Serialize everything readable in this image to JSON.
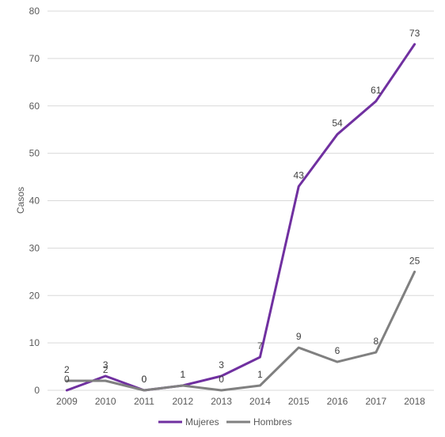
{
  "chart_data": {
    "type": "line",
    "title": "",
    "xlabel": "",
    "ylabel": "Casos",
    "x": [
      "2009",
      "2010",
      "2011",
      "2012",
      "2013",
      "2014",
      "2015",
      "2016",
      "2017",
      "2018"
    ],
    "ylim": [
      0,
      80
    ],
    "yticks": [
      "0",
      "10",
      "20",
      "30",
      "40",
      "50",
      "60",
      "70",
      "80"
    ],
    "grid": true,
    "legend_position": "bottom",
    "series": [
      {
        "name": "Mujeres",
        "color": "#7030A0",
        "values": [
          0,
          3,
          0,
          1,
          3,
          7,
          43,
          54,
          61,
          73
        ],
        "labels": [
          "0",
          "3",
          "0",
          "1",
          "3",
          "7",
          "43",
          "54",
          "61",
          "73"
        ]
      },
      {
        "name": "Hombres",
        "color": "#808080",
        "values": [
          2,
          2,
          0,
          1,
          0,
          1,
          9,
          6,
          8,
          25
        ],
        "labels": [
          "2",
          "2",
          "0",
          "1",
          "0",
          "1",
          "9",
          "6",
          "8",
          "25"
        ]
      }
    ]
  }
}
